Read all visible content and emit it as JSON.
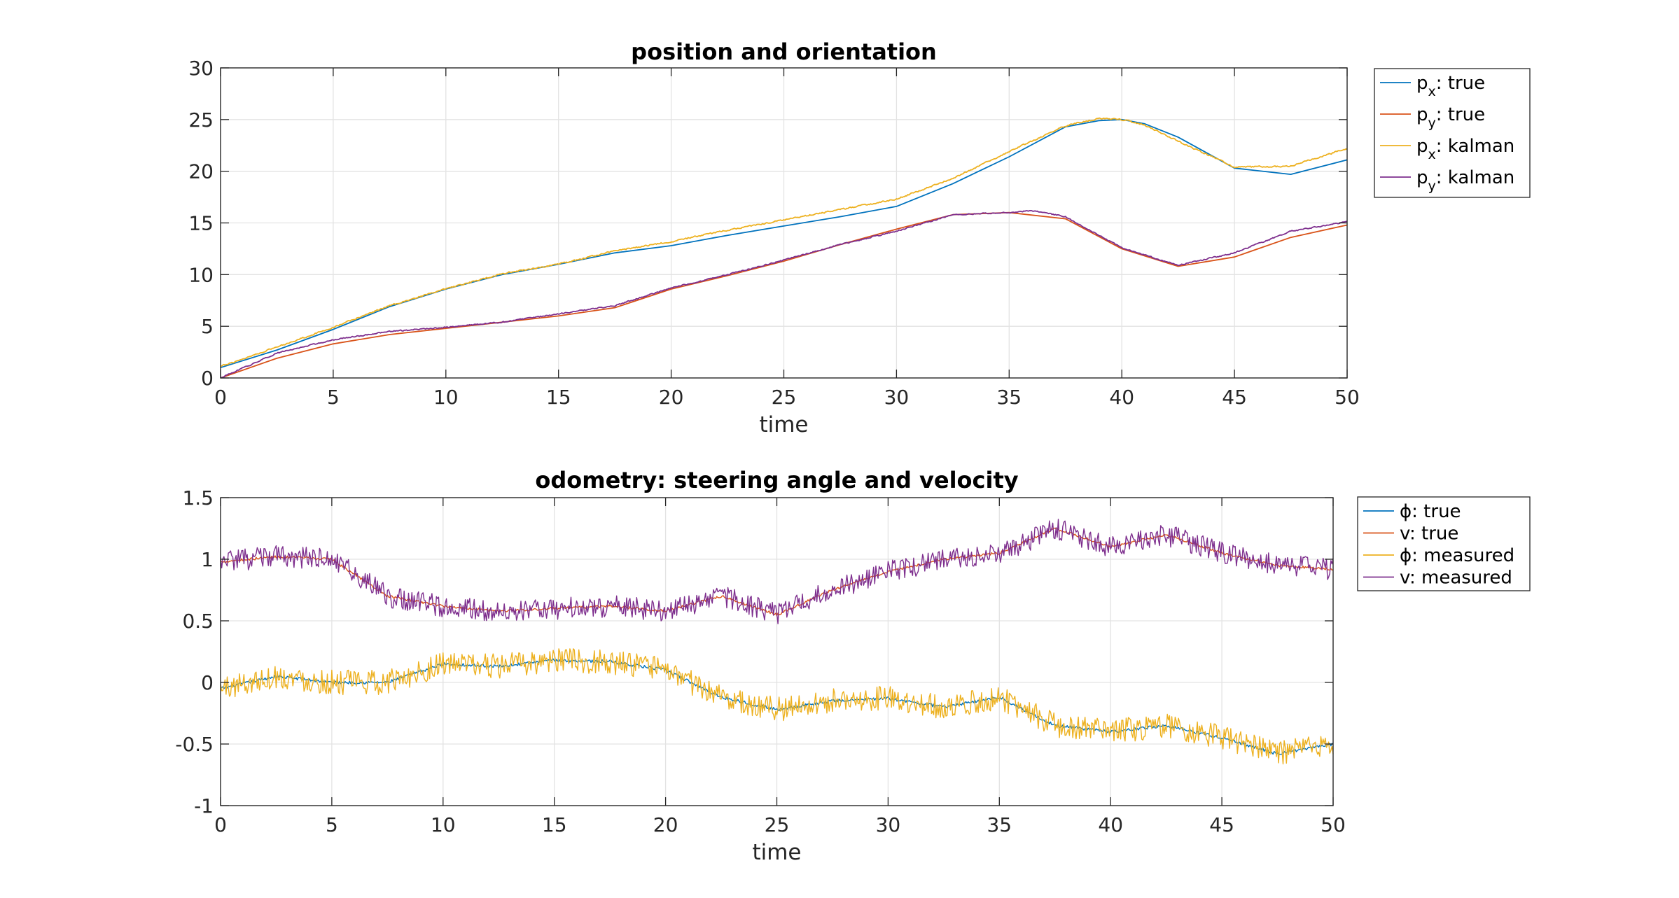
{
  "chart_data": [
    {
      "type": "line",
      "title": "position and orientation",
      "xlabel": "time",
      "ylabel": "",
      "xlim": [
        0,
        50
      ],
      "ylim": [
        0,
        30
      ],
      "xticks": [
        0,
        5,
        10,
        15,
        20,
        25,
        30,
        35,
        40,
        45,
        50
      ],
      "yticks": [
        0,
        5,
        10,
        15,
        20,
        25,
        30
      ],
      "grid": true,
      "legend_position": "outside-top-right",
      "series": [
        {
          "name": "p_x: true",
          "label_main": "p",
          "label_sub": "x",
          "label_rest": ": true",
          "color": "#0072bd",
          "noise": 0,
          "x": [
            0,
            2.5,
            5,
            7.5,
            10,
            12.5,
            15,
            17.5,
            20,
            22.5,
            25,
            27.5,
            30,
            32.5,
            35,
            37.5,
            39,
            40,
            41,
            42.5,
            45,
            47.5,
            50
          ],
          "y": [
            1.0,
            2.7,
            4.7,
            6.9,
            8.6,
            10.0,
            11.0,
            12.1,
            12.8,
            13.8,
            14.7,
            15.6,
            16.6,
            18.8,
            21.4,
            24.3,
            24.9,
            25.0,
            24.6,
            23.3,
            20.3,
            19.7,
            21.1
          ]
        },
        {
          "name": "p_y: true",
          "label_main": "p",
          "label_sub": "y",
          "label_rest": ": true",
          "color": "#d95319",
          "noise": 0,
          "x": [
            0,
            2.5,
            5,
            7.5,
            10,
            12.5,
            15,
            17.5,
            20,
            22.5,
            25,
            27.5,
            30,
            32.5,
            35,
            37.5,
            40,
            42.5,
            45,
            47.5,
            50
          ],
          "y": [
            0,
            1.9,
            3.3,
            4.2,
            4.8,
            5.4,
            6.0,
            6.8,
            8.6,
            9.9,
            11.3,
            12.9,
            14.4,
            15.8,
            16.0,
            15.4,
            12.5,
            10.8,
            11.7,
            13.6,
            14.8
          ]
        },
        {
          "name": "p_x: kalman",
          "label_main": "p",
          "label_sub": "x",
          "label_rest": ": kalman",
          "color": "#edb120",
          "noise": 0.12,
          "x": [
            0,
            2.5,
            5,
            7.5,
            10,
            12.5,
            15,
            17.5,
            20,
            22.5,
            25,
            27.5,
            30,
            32.5,
            35,
            37.5,
            39,
            40,
            41,
            42.5,
            45,
            47.5,
            50
          ],
          "y": [
            1.1,
            3.0,
            4.9,
            7.0,
            8.6,
            10.1,
            11.0,
            12.3,
            13.2,
            14.3,
            15.3,
            16.3,
            17.3,
            19.3,
            21.9,
            24.4,
            25.1,
            25.0,
            24.5,
            22.9,
            20.4,
            20.5,
            22.2
          ]
        },
        {
          "name": "p_y: kalman",
          "label_main": "p",
          "label_sub": "y",
          "label_rest": ": kalman",
          "color": "#7e2f8e",
          "noise": 0.1,
          "x": [
            0,
            2.5,
            5,
            7.5,
            10,
            12.5,
            15,
            17.5,
            20,
            22.5,
            25,
            27.5,
            30,
            32.5,
            35,
            36,
            37.5,
            40,
            42.5,
            45,
            47.5,
            50
          ],
          "y": [
            0,
            2.4,
            3.7,
            4.5,
            4.9,
            5.4,
            6.2,
            7.0,
            8.7,
            10.0,
            11.4,
            12.9,
            14.2,
            15.8,
            16.0,
            16.2,
            15.6,
            12.6,
            10.9,
            12.1,
            14.2,
            15.1
          ]
        }
      ]
    },
    {
      "type": "line",
      "title": "odometry: steering angle and velocity",
      "xlabel": "time",
      "ylabel": "",
      "xlim": [
        0,
        50
      ],
      "ylim": [
        -1,
        1.5
      ],
      "xticks": [
        0,
        5,
        10,
        15,
        20,
        25,
        30,
        35,
        40,
        45,
        50
      ],
      "yticks": [
        -1,
        -0.5,
        0,
        0.5,
        1,
        1.5
      ],
      "grid": true,
      "legend_position": "outside-top-right",
      "series": [
        {
          "name": "ϕ: true",
          "label_main": "ϕ",
          "label_sub": "",
          "label_rest": ": true",
          "color": "#0072bd",
          "noise": 0.012,
          "x": [
            0,
            2.5,
            5,
            7.5,
            10,
            12.5,
            15,
            17.5,
            20,
            22.5,
            25,
            27.5,
            30,
            32.5,
            35,
            37.5,
            40,
            42.5,
            45,
            47.5,
            50
          ],
          "y": [
            -0.05,
            0.05,
            0.0,
            0.0,
            0.15,
            0.13,
            0.18,
            0.17,
            0.1,
            -0.12,
            -0.22,
            -0.15,
            -0.13,
            -0.2,
            -0.12,
            -0.35,
            -0.4,
            -0.35,
            -0.45,
            -0.58,
            -0.5
          ]
        },
        {
          "name": "v: true",
          "label_main": "v",
          "label_sub": "",
          "label_rest": ": true",
          "color": "#d95319",
          "noise": 0.01,
          "x": [
            0,
            2.5,
            5,
            7.5,
            10,
            12.5,
            15,
            17.5,
            20,
            22.5,
            25,
            27.5,
            30,
            32.5,
            35,
            37.5,
            40,
            42.5,
            45,
            47.5,
            50
          ],
          "y": [
            0.98,
            1.02,
            1.0,
            0.7,
            0.62,
            0.58,
            0.6,
            0.62,
            0.58,
            0.7,
            0.55,
            0.75,
            0.9,
            1.0,
            1.05,
            1.25,
            1.1,
            1.2,
            1.05,
            0.95,
            0.92
          ]
        },
        {
          "name": "ϕ: measured",
          "label_main": "ϕ",
          "label_sub": "",
          "label_rest": ": measured",
          "color": "#edb120",
          "noise": 0.1,
          "x": [
            0,
            2.5,
            5,
            7.5,
            10,
            12.5,
            15,
            17.5,
            20,
            22.5,
            25,
            27.5,
            30,
            32.5,
            35,
            37.5,
            40,
            42.5,
            45,
            47.5,
            50
          ],
          "y": [
            -0.05,
            0.05,
            0.0,
            0.0,
            0.15,
            0.13,
            0.18,
            0.17,
            0.1,
            -0.12,
            -0.22,
            -0.15,
            -0.13,
            -0.2,
            -0.12,
            -0.35,
            -0.4,
            -0.35,
            -0.45,
            -0.58,
            -0.5
          ]
        },
        {
          "name": "v: measured",
          "label_main": "v",
          "label_sub": "",
          "label_rest": ": measured",
          "color": "#7e2f8e",
          "noise": 0.09,
          "x": [
            0,
            2.5,
            5,
            7.5,
            10,
            12.5,
            15,
            17.5,
            20,
            22.5,
            25,
            27.5,
            30,
            32.5,
            35,
            37.5,
            40,
            42.5,
            45,
            47.5,
            50
          ],
          "y": [
            0.98,
            1.02,
            1.0,
            0.7,
            0.62,
            0.58,
            0.6,
            0.62,
            0.58,
            0.7,
            0.55,
            0.75,
            0.9,
            1.0,
            1.05,
            1.25,
            1.1,
            1.2,
            1.05,
            0.95,
            0.92
          ]
        }
      ]
    }
  ]
}
